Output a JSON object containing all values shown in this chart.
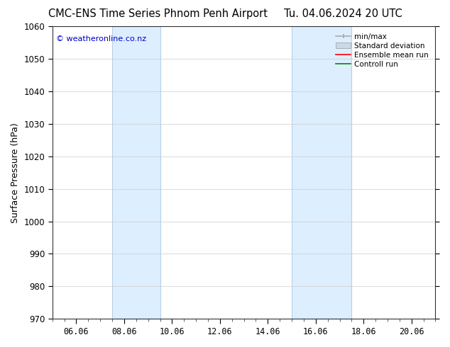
{
  "title_left": "CMC-ENS Time Series Phnom Penh Airport",
  "title_right": "Tu. 04.06.2024 20 UTC",
  "ylabel": "Surface Pressure (hPa)",
  "watermark": "© weatheronline.co.nz",
  "watermark_color": "#0000cc",
  "ylim": [
    970,
    1060
  ],
  "yticks": [
    970,
    980,
    990,
    1000,
    1010,
    1020,
    1030,
    1040,
    1050,
    1060
  ],
  "xtick_labels": [
    "06.06",
    "08.06",
    "10.06",
    "12.06",
    "14.06",
    "16.06",
    "18.06",
    "20.06"
  ],
  "xtick_positions": [
    0,
    2,
    4,
    6,
    8,
    10,
    12,
    14
  ],
  "xmin": -1,
  "xmax": 15,
  "shaded_regions": [
    {
      "xstart": 1.5,
      "xend": 3.5
    },
    {
      "xstart": 9.0,
      "xend": 11.5
    }
  ],
  "shaded_color": "#ddeeff",
  "shaded_edge_color": "#b8d0e8",
  "bg_color": "#ffffff",
  "grid_color": "#cccccc",
  "legend_items": [
    {
      "label": "min/max",
      "color": "#aaaaaa",
      "lw": 1.2,
      "style": "solid"
    },
    {
      "label": "Standard deviation",
      "color": "#c8daea",
      "lw": 6,
      "style": "solid"
    },
    {
      "label": "Ensemble mean run",
      "color": "#ff0000",
      "lw": 1.2,
      "style": "solid"
    },
    {
      "label": "Controll run",
      "color": "#008800",
      "lw": 1.2,
      "style": "solid"
    }
  ],
  "title_fontsize": 10.5,
  "axis_fontsize": 9,
  "tick_fontsize": 8.5,
  "legend_fontsize": 7.5
}
